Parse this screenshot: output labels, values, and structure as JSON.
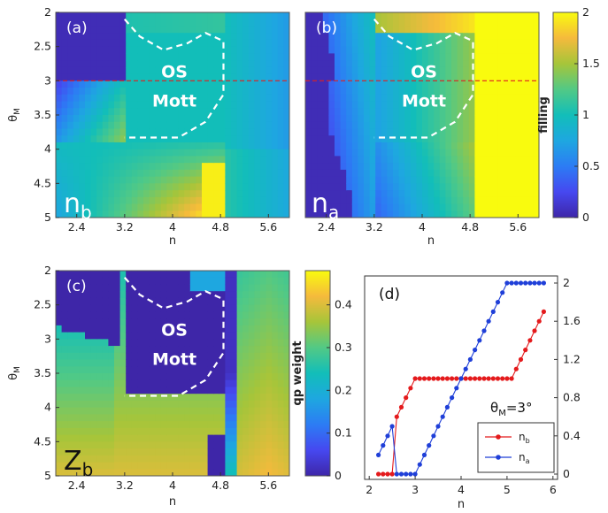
{
  "chart_data": [
    {
      "type": "heatmap",
      "panel_label": "(a)",
      "corner_label_main": "n",
      "corner_label_sub": "b",
      "xlabel": "n",
      "ylabel_main": "θ",
      "ylabel_sub": "M",
      "xticks": [
        "2.4",
        "3.2",
        "4",
        "4.8",
        "5.6"
      ],
      "xtick_values": [
        2.4,
        3.2,
        4.0,
        4.8,
        5.6
      ],
      "yticks": [
        "2",
        "2.5",
        "3",
        "3.5",
        "4",
        "4.5",
        "5"
      ],
      "ytick_values": [
        2,
        2.5,
        3,
        3.5,
        4,
        4.5,
        5
      ],
      "xlim": [
        2.05,
        5.95
      ],
      "ylim": [
        5.0,
        2.0
      ],
      "region_label_1": "OS",
      "region_label_2": "Mott",
      "reference_line_y": 3
    },
    {
      "type": "heatmap",
      "panel_label": "(b)",
      "corner_label_main": "n",
      "corner_label_sub": "a",
      "xlabel": "n",
      "xticks": [
        "2.4",
        "3.2",
        "4",
        "4.8",
        "5.6"
      ],
      "xtick_values": [
        2.4,
        3.2,
        4.0,
        4.8,
        5.6
      ],
      "xlim": [
        2.05,
        5.95
      ],
      "ylim": [
        5.0,
        2.0
      ],
      "region_label_1": "OS",
      "region_label_2": "Mott",
      "reference_line_y": 3
    },
    {
      "type": "heatmap",
      "panel_label": "(c)",
      "corner_label_main": "Z",
      "corner_label_sub": "b",
      "xlabel": "n",
      "ylabel_main": "θ",
      "ylabel_sub": "M",
      "xticks": [
        "2.4",
        "3.2",
        "4",
        "4.8",
        "5.6"
      ],
      "xtick_values": [
        2.4,
        3.2,
        4.0,
        4.8,
        5.6
      ],
      "yticks": [
        "2",
        "2.5",
        "3",
        "3.5",
        "4",
        "4.5",
        "5"
      ],
      "ytick_values": [
        2,
        2.5,
        3,
        3.5,
        4,
        4.5,
        5
      ],
      "xlim": [
        2.05,
        5.95
      ],
      "ylim": [
        5.0,
        2.0
      ],
      "region_label_1": "OS",
      "region_label_2": "Mott"
    },
    {
      "type": "line",
      "panel_label": "(d)",
      "annotation_main": "θ",
      "annotation_sub": "M",
      "annotation_value": "=3°",
      "xlabel": "n",
      "xticks": [
        "2",
        "3",
        "4",
        "5",
        "6"
      ],
      "xtick_values": [
        2,
        3,
        4,
        5,
        6
      ],
      "yticks_right": [
        "0",
        "0.4",
        "0.8",
        "1.2",
        "1.6",
        "2"
      ],
      "ytick_values": [
        0,
        0.4,
        0.8,
        1.2,
        1.6,
        2
      ],
      "xlim": [
        1.9,
        6.1
      ],
      "ylim": [
        0,
        2
      ],
      "legend_position": "bottom-right",
      "series": [
        {
          "name_main": "n",
          "name_sub": "b",
          "color": "#e41a1c",
          "x": [
            2.2,
            2.3,
            2.4,
            2.5,
            2.6,
            2.7,
            2.8,
            2.9,
            3.0,
            3.1,
            3.2,
            3.3,
            3.4,
            3.5,
            3.6,
            3.7,
            3.8,
            3.9,
            4.0,
            4.1,
            4.2,
            4.3,
            4.4,
            4.5,
            4.6,
            4.7,
            4.8,
            4.9,
            5.0,
            5.1,
            5.2,
            5.3,
            5.4,
            5.5,
            5.6,
            5.7,
            5.8
          ],
          "y": [
            0,
            0,
            0,
            0,
            0.6,
            0.7,
            0.8,
            0.9,
            1.0,
            1.0,
            1.0,
            1.0,
            1.0,
            1.0,
            1.0,
            1.0,
            1.0,
            1.0,
            1.0,
            1.0,
            1.0,
            1.0,
            1.0,
            1.0,
            1.0,
            1.0,
            1.0,
            1.0,
            1.0,
            1.0,
            1.1,
            1.2,
            1.3,
            1.4,
            1.5,
            1.6,
            1.7
          ]
        },
        {
          "name_main": "n",
          "name_sub": "a",
          "color": "#1f3fd8",
          "x": [
            2.2,
            2.3,
            2.4,
            2.5,
            2.6,
            2.7,
            2.8,
            2.9,
            3.0,
            3.1,
            3.2,
            3.3,
            3.4,
            3.5,
            3.6,
            3.7,
            3.8,
            3.9,
            4.0,
            4.1,
            4.2,
            4.3,
            4.4,
            4.5,
            4.6,
            4.7,
            4.8,
            4.9,
            5.0,
            5.1,
            5.2,
            5.3,
            5.4,
            5.5,
            5.6,
            5.7,
            5.8
          ],
          "y": [
            0.2,
            0.3,
            0.4,
            0.5,
            0,
            0,
            0,
            0,
            0,
            0.1,
            0.2,
            0.3,
            0.4,
            0.5,
            0.6,
            0.7,
            0.8,
            0.9,
            1.0,
            1.1,
            1.2,
            1.3,
            1.4,
            1.5,
            1.6,
            1.7,
            1.8,
            1.9,
            2.0,
            2.0,
            2.0,
            2.0,
            2.0,
            2.0,
            2.0,
            2.0,
            2.0
          ]
        }
      ]
    }
  ],
  "colorbars": [
    {
      "label": "filling",
      "ticks": [
        "0",
        "0.5",
        "1",
        "1.5",
        "2"
      ],
      "tick_values": [
        0,
        0.5,
        1,
        1.5,
        2
      ],
      "range": [
        0,
        2
      ]
    },
    {
      "label": "qp weight",
      "ticks": [
        "0",
        "0.1",
        "0.2",
        "0.3",
        "0.4"
      ],
      "tick_values": [
        0,
        0.1,
        0.2,
        0.3,
        0.4
      ],
      "range": [
        0,
        0.48
      ]
    }
  ],
  "colors": {
    "map_dark": "#3e26a8",
    "map_mid": "#12beb9",
    "map_bright": "#f9fb0e",
    "reference_line": "#e02020",
    "contour": "#ffffff"
  }
}
